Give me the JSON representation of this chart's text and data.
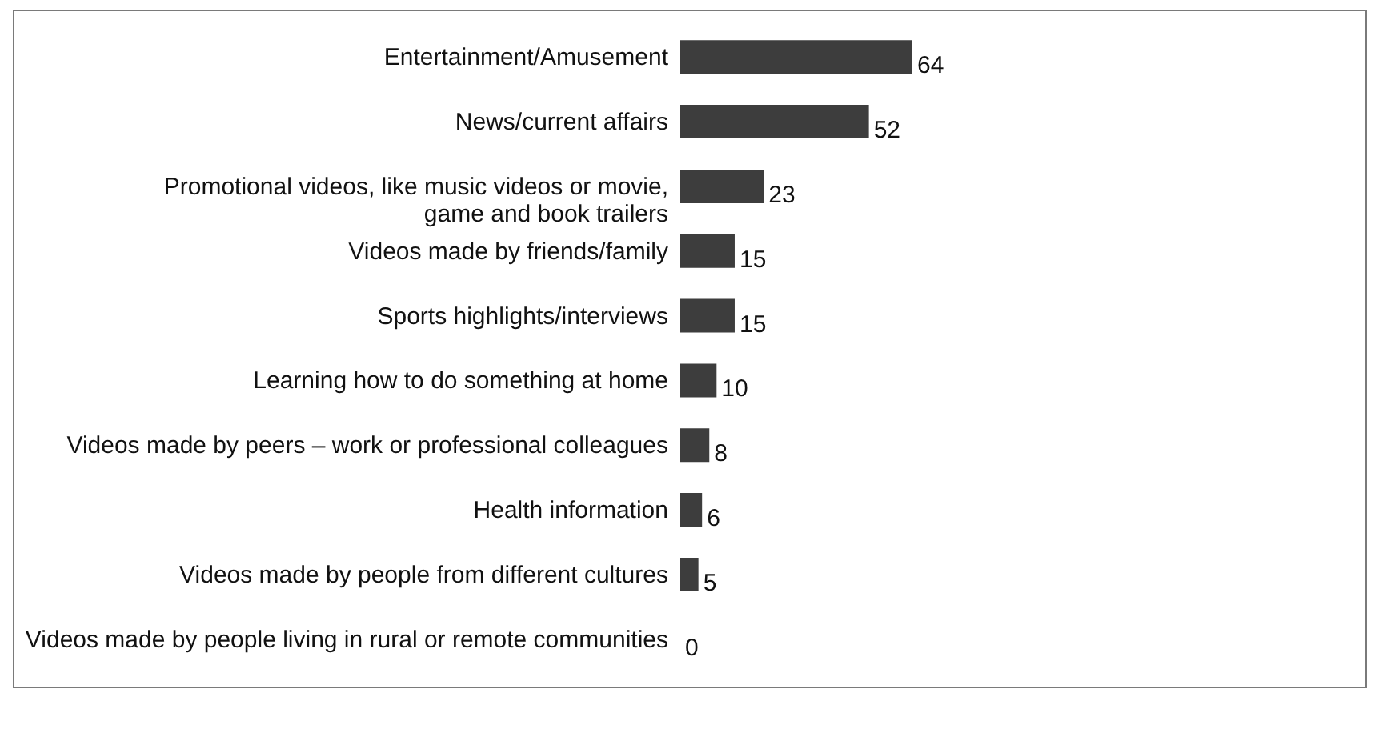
{
  "chart_data": {
    "type": "bar",
    "orientation": "horizontal",
    "data_labels": true,
    "categories": [
      "Entertainment/Amusement",
      "News/current affairs",
      "Promotional videos, like music videos or movie, game and book trailers",
      "Videos made by friends/family",
      "Sports highlights/interviews",
      "Learning how to do something at home",
      "Videos made by peers – work or professional colleagues",
      "Health information",
      "Videos made by people from different cultures",
      "Videos made by people living in rural or remote communities"
    ],
    "values": [
      64,
      52,
      23,
      15,
      15,
      10,
      8,
      6,
      5,
      0
    ],
    "color": "#3d3d3d"
  }
}
